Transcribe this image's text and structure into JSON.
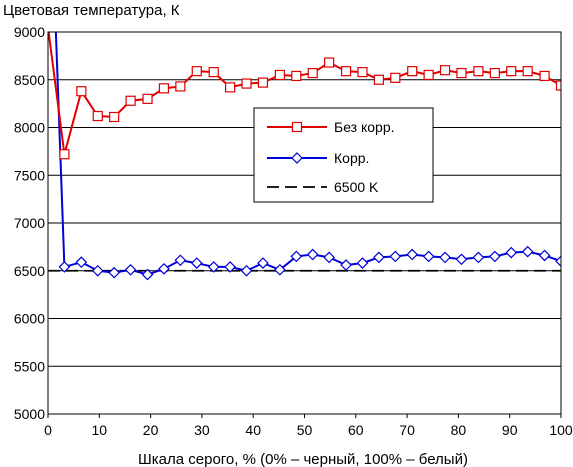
{
  "chart_data": {
    "type": "line",
    "title": "",
    "ylabel": "Цветовая температура, К",
    "xlabel": "Шкала серого, % (0% – черный, 100% – белый)",
    "xlim": [
      0,
      100
    ],
    "ylim": [
      5000,
      9000
    ],
    "x_ticks": [
      0,
      10,
      20,
      30,
      40,
      50,
      60,
      70,
      80,
      90,
      100
    ],
    "y_ticks": [
      5000,
      5500,
      6000,
      6500,
      7000,
      7500,
      8000,
      8500,
      9000
    ],
    "grid": "horizontal",
    "legend_position": "center-right",
    "series": [
      {
        "name": "Без корр.",
        "color": "#e00000",
        "marker": "square",
        "x": [
          0,
          3.2,
          6.5,
          9.7,
          12.9,
          16.1,
          19.4,
          22.6,
          25.8,
          29.0,
          32.3,
          35.5,
          38.7,
          41.9,
          45.2,
          48.4,
          51.6,
          54.8,
          58.1,
          61.3,
          64.5,
          67.7,
          71.0,
          74.2,
          77.4,
          80.6,
          83.9,
          87.1,
          90.3,
          93.5,
          96.8,
          100
        ],
        "values": [
          9050,
          7720,
          8380,
          8120,
          8110,
          8280,
          8300,
          8410,
          8430,
          8590,
          8580,
          8420,
          8460,
          8470,
          8550,
          8540,
          8570,
          8680,
          8590,
          8580,
          8500,
          8520,
          8590,
          8550,
          8600,
          8570,
          8590,
          8570,
          8590,
          8590,
          8540,
          8440
        ]
      },
      {
        "name": "Корр.",
        "color": "#0000d8",
        "marker": "diamond",
        "x": [
          1.5,
          3.2,
          6.5,
          9.7,
          12.9,
          16.1,
          19.4,
          22.6,
          25.8,
          29.0,
          32.3,
          35.5,
          38.7,
          41.9,
          45.2,
          48.4,
          51.6,
          54.8,
          58.1,
          61.3,
          64.5,
          67.7,
          71.0,
          74.2,
          77.4,
          80.6,
          83.9,
          87.1,
          90.3,
          93.5,
          96.8,
          100
        ],
        "values": [
          9050,
          6540,
          6590,
          6500,
          6480,
          6510,
          6460,
          6520,
          6610,
          6580,
          6540,
          6540,
          6500,
          6580,
          6510,
          6650,
          6670,
          6640,
          6560,
          6580,
          6640,
          6650,
          6670,
          6650,
          6640,
          6620,
          6640,
          6650,
          6690,
          6700,
          6660,
          6600
        ]
      },
      {
        "name": "6500 K",
        "color": "#000000",
        "marker": "none",
        "dashed": true,
        "x": [
          0,
          100
        ],
        "values": [
          6500,
          6500
        ]
      }
    ]
  }
}
